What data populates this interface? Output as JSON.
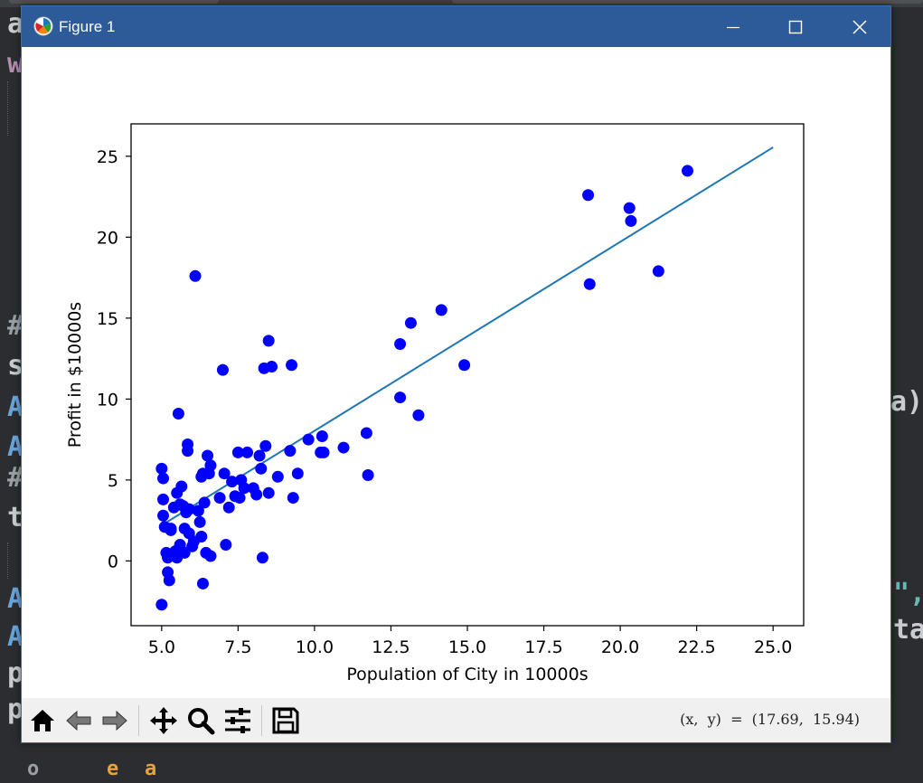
{
  "window": {
    "title": "Figure 1"
  },
  "background_code": {
    "fragments": [
      "a",
      "w",
      "#",
      "s",
      "A",
      "A",
      "#",
      "t",
      "A",
      "A",
      "p",
      "p",
      "a)",
      "\",",
      "ta",
      "o",
      "e",
      "a"
    ]
  },
  "toolbar": {
    "icons": [
      "home-icon",
      "back-icon",
      "forward-icon",
      "pan-icon",
      "zoom-icon",
      "configure-subplots-icon",
      "save-icon"
    ],
    "coordinates_readout": "(x,  y)  =  (17.69,  15.94)"
  },
  "chart_data": {
    "type": "scatter",
    "xlabel": "Population of City in 10000s",
    "ylabel": "Profit in $10000s",
    "xlim": [
      4.0,
      26.0
    ],
    "ylim": [
      -4.0,
      27.0
    ],
    "xticks": [
      "5.0",
      "7.5",
      "10.0",
      "12.5",
      "15.0",
      "17.5",
      "20.0",
      "22.5",
      "25.0"
    ],
    "yticks": [
      "0",
      "5",
      "10",
      "15",
      "20",
      "25"
    ],
    "xtick_values": [
      5.0,
      7.5,
      10.0,
      12.5,
      15.0,
      17.5,
      20.0,
      22.5,
      25.0
    ],
    "ytick_values": [
      0,
      5,
      10,
      15,
      20,
      25
    ],
    "grid": false,
    "marker_color": "#0000ff",
    "line_color": "#1f77b4",
    "scatter_points": [
      [
        5.0,
        -2.7
      ],
      [
        5.0,
        5.7
      ],
      [
        5.05,
        5.1
      ],
      [
        5.05,
        3.8
      ],
      [
        5.05,
        2.8
      ],
      [
        5.1,
        2.1
      ],
      [
        5.15,
        0.5
      ],
      [
        5.2,
        -0.7
      ],
      [
        5.2,
        0.2
      ],
      [
        5.25,
        -1.2
      ],
      [
        5.3,
        2.0
      ],
      [
        5.3,
        1.9
      ],
      [
        5.4,
        3.3
      ],
      [
        5.45,
        0.6
      ],
      [
        5.5,
        4.2
      ],
      [
        5.5,
        0.2
      ],
      [
        5.55,
        9.1
      ],
      [
        5.6,
        3.5
      ],
      [
        5.6,
        1.0
      ],
      [
        5.65,
        4.6
      ],
      [
        5.7,
        3.4
      ],
      [
        5.75,
        2.0
      ],
      [
        5.75,
        0.5
      ],
      [
        5.8,
        3.0
      ],
      [
        5.85,
        7.2
      ],
      [
        5.85,
        6.8
      ],
      [
        5.9,
        1.7
      ],
      [
        5.9,
        3.2
      ],
      [
        6.0,
        0.9
      ],
      [
        6.05,
        1.2
      ],
      [
        6.1,
        17.6
      ],
      [
        6.2,
        3.1
      ],
      [
        6.25,
        2.4
      ],
      [
        6.3,
        5.2
      ],
      [
        6.3,
        1.5
      ],
      [
        6.35,
        -1.4
      ],
      [
        6.35,
        5.4
      ],
      [
        6.4,
        3.6
      ],
      [
        6.45,
        0.5
      ],
      [
        6.5,
        6.5
      ],
      [
        6.55,
        5.4
      ],
      [
        6.6,
        5.9
      ],
      [
        6.6,
        0.3
      ],
      [
        6.9,
        3.9
      ],
      [
        7.0,
        11.8
      ],
      [
        7.05,
        5.4
      ],
      [
        7.1,
        1.0
      ],
      [
        7.2,
        3.3
      ],
      [
        7.3,
        4.9
      ],
      [
        7.4,
        4.0
      ],
      [
        7.5,
        6.7
      ],
      [
        7.55,
        3.9
      ],
      [
        7.6,
        5.0
      ],
      [
        7.7,
        4.5
      ],
      [
        7.8,
        6.7
      ],
      [
        8.0,
        4.5
      ],
      [
        8.1,
        4.1
      ],
      [
        8.2,
        6.5
      ],
      [
        8.25,
        5.7
      ],
      [
        8.3,
        0.2
      ],
      [
        8.35,
        11.9
      ],
      [
        8.4,
        7.1
      ],
      [
        8.5,
        4.2
      ],
      [
        8.5,
        13.6
      ],
      [
        8.6,
        12.0
      ],
      [
        8.8,
        5.2
      ],
      [
        9.2,
        6.8
      ],
      [
        9.25,
        12.1
      ],
      [
        9.3,
        3.9
      ],
      [
        9.45,
        5.4
      ],
      [
        9.8,
        7.5
      ],
      [
        10.2,
        6.7
      ],
      [
        10.25,
        7.7
      ],
      [
        10.3,
        6.7
      ],
      [
        10.95,
        7.0
      ],
      [
        11.7,
        7.9
      ],
      [
        11.75,
        5.3
      ],
      [
        12.8,
        10.1
      ],
      [
        12.8,
        13.4
      ],
      [
        13.15,
        14.7
      ],
      [
        13.4,
        9.0
      ],
      [
        14.15,
        15.5
      ],
      [
        14.9,
        12.1
      ],
      [
        18.95,
        22.6
      ],
      [
        19.0,
        17.1
      ],
      [
        20.3,
        21.8
      ],
      [
        20.35,
        21.0
      ],
      [
        21.25,
        17.9
      ],
      [
        22.2,
        24.1
      ]
    ],
    "fit_line": {
      "x": [
        5.0,
        25.0
      ],
      "y": [
        2.2,
        25.55
      ]
    }
  }
}
